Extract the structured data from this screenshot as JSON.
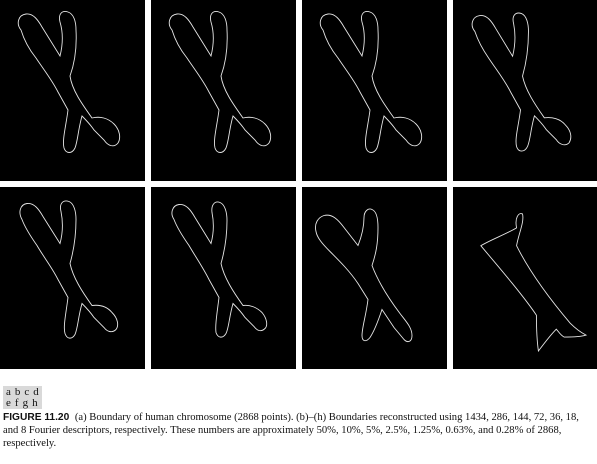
{
  "figure": {
    "label": "FIGURE 11.20",
    "caption": "(a) Boundary of human chromosome (2868 points). (b)–(h) Boundaries reconstructed using 1434, 286, 144, 72, 36, 18, and 8 Fourier descriptors, respectively. These numbers are approximately 50%, 10%, 5%, 2.5%, 1.25%, 0.63%, and 0.28% of 2868, respectively."
  },
  "panel_grid": {
    "rows": [
      [
        "a",
        "b",
        "c",
        "d"
      ],
      [
        "e",
        "f",
        "g",
        "h"
      ]
    ]
  },
  "colors": {
    "panel_background": "#000000",
    "boundary_stroke": "#e6e6e6",
    "label_background": "#d9d9d9"
  }
}
